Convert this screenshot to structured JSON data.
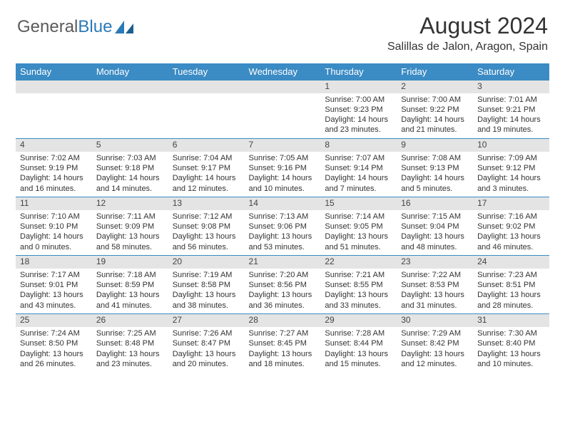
{
  "logo": {
    "text1": "General",
    "text2": "Blue"
  },
  "title": "August 2024",
  "location": "Salillas de Jalon, Aragon, Spain",
  "colors": {
    "header_bg": "#3b8bc4",
    "header_text": "#ffffff",
    "daynum_bg": "#e4e4e4",
    "rule": "#3b8bc4",
    "body_text": "#333333",
    "logo_gray": "#5a5a5a",
    "logo_blue": "#2a7ab8"
  },
  "dayNames": [
    "Sunday",
    "Monday",
    "Tuesday",
    "Wednesday",
    "Thursday",
    "Friday",
    "Saturday"
  ],
  "weeks": [
    [
      null,
      null,
      null,
      null,
      {
        "n": "1",
        "sr": "7:00 AM",
        "ss": "9:23 PM",
        "dl": "14 hours and 23 minutes."
      },
      {
        "n": "2",
        "sr": "7:00 AM",
        "ss": "9:22 PM",
        "dl": "14 hours and 21 minutes."
      },
      {
        "n": "3",
        "sr": "7:01 AM",
        "ss": "9:21 PM",
        "dl": "14 hours and 19 minutes."
      }
    ],
    [
      {
        "n": "4",
        "sr": "7:02 AM",
        "ss": "9:19 PM",
        "dl": "14 hours and 16 minutes."
      },
      {
        "n": "5",
        "sr": "7:03 AM",
        "ss": "9:18 PM",
        "dl": "14 hours and 14 minutes."
      },
      {
        "n": "6",
        "sr": "7:04 AM",
        "ss": "9:17 PM",
        "dl": "14 hours and 12 minutes."
      },
      {
        "n": "7",
        "sr": "7:05 AM",
        "ss": "9:16 PM",
        "dl": "14 hours and 10 minutes."
      },
      {
        "n": "8",
        "sr": "7:07 AM",
        "ss": "9:14 PM",
        "dl": "14 hours and 7 minutes."
      },
      {
        "n": "9",
        "sr": "7:08 AM",
        "ss": "9:13 PM",
        "dl": "14 hours and 5 minutes."
      },
      {
        "n": "10",
        "sr": "7:09 AM",
        "ss": "9:12 PM",
        "dl": "14 hours and 3 minutes."
      }
    ],
    [
      {
        "n": "11",
        "sr": "7:10 AM",
        "ss": "9:10 PM",
        "dl": "14 hours and 0 minutes."
      },
      {
        "n": "12",
        "sr": "7:11 AM",
        "ss": "9:09 PM",
        "dl": "13 hours and 58 minutes."
      },
      {
        "n": "13",
        "sr": "7:12 AM",
        "ss": "9:08 PM",
        "dl": "13 hours and 56 minutes."
      },
      {
        "n": "14",
        "sr": "7:13 AM",
        "ss": "9:06 PM",
        "dl": "13 hours and 53 minutes."
      },
      {
        "n": "15",
        "sr": "7:14 AM",
        "ss": "9:05 PM",
        "dl": "13 hours and 51 minutes."
      },
      {
        "n": "16",
        "sr": "7:15 AM",
        "ss": "9:04 PM",
        "dl": "13 hours and 48 minutes."
      },
      {
        "n": "17",
        "sr": "7:16 AM",
        "ss": "9:02 PM",
        "dl": "13 hours and 46 minutes."
      }
    ],
    [
      {
        "n": "18",
        "sr": "7:17 AM",
        "ss": "9:01 PM",
        "dl": "13 hours and 43 minutes."
      },
      {
        "n": "19",
        "sr": "7:18 AM",
        "ss": "8:59 PM",
        "dl": "13 hours and 41 minutes."
      },
      {
        "n": "20",
        "sr": "7:19 AM",
        "ss": "8:58 PM",
        "dl": "13 hours and 38 minutes."
      },
      {
        "n": "21",
        "sr": "7:20 AM",
        "ss": "8:56 PM",
        "dl": "13 hours and 36 minutes."
      },
      {
        "n": "22",
        "sr": "7:21 AM",
        "ss": "8:55 PM",
        "dl": "13 hours and 33 minutes."
      },
      {
        "n": "23",
        "sr": "7:22 AM",
        "ss": "8:53 PM",
        "dl": "13 hours and 31 minutes."
      },
      {
        "n": "24",
        "sr": "7:23 AM",
        "ss": "8:51 PM",
        "dl": "13 hours and 28 minutes."
      }
    ],
    [
      {
        "n": "25",
        "sr": "7:24 AM",
        "ss": "8:50 PM",
        "dl": "13 hours and 26 minutes."
      },
      {
        "n": "26",
        "sr": "7:25 AM",
        "ss": "8:48 PM",
        "dl": "13 hours and 23 minutes."
      },
      {
        "n": "27",
        "sr": "7:26 AM",
        "ss": "8:47 PM",
        "dl": "13 hours and 20 minutes."
      },
      {
        "n": "28",
        "sr": "7:27 AM",
        "ss": "8:45 PM",
        "dl": "13 hours and 18 minutes."
      },
      {
        "n": "29",
        "sr": "7:28 AM",
        "ss": "8:44 PM",
        "dl": "13 hours and 15 minutes."
      },
      {
        "n": "30",
        "sr": "7:29 AM",
        "ss": "8:42 PM",
        "dl": "13 hours and 12 minutes."
      },
      {
        "n": "31",
        "sr": "7:30 AM",
        "ss": "8:40 PM",
        "dl": "13 hours and 10 minutes."
      }
    ]
  ],
  "labels": {
    "sunrise": "Sunrise: ",
    "sunset": "Sunset: ",
    "daylight": "Daylight: "
  }
}
